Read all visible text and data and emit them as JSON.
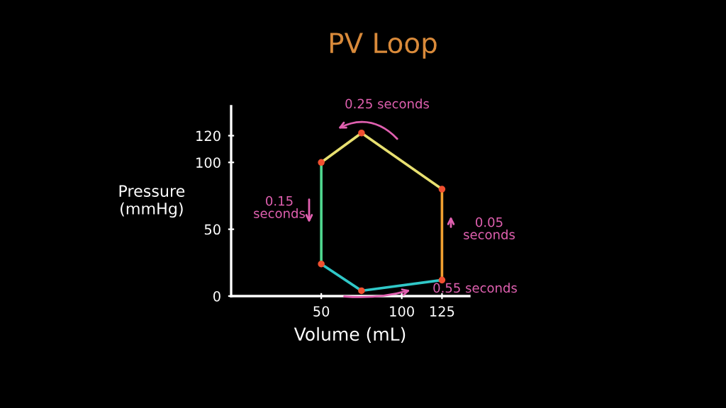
{
  "chart_data": {
    "type": "line",
    "title": "PV Loop",
    "xlabel": "Volume (mL)",
    "ylabel": "Pressure\n(mmHg)",
    "xlim": [
      -6,
      142
    ],
    "ylim": [
      0,
      142
    ],
    "xticks": [
      50,
      100,
      125
    ],
    "yticks": [
      0,
      50,
      100,
      120
    ],
    "grid": false,
    "marker": "none",
    "line_style": "solid",
    "series": [
      {
        "color": "#e8e070",
        "x": [
          125,
          75,
          50
        ],
        "values": [
          80,
          122,
          100
        ]
      },
      {
        "color": "#50d890",
        "x": [
          50,
          50
        ],
        "values": [
          100,
          24
        ]
      },
      {
        "color": "#30c8c8",
        "x": [
          50,
          75,
          125
        ],
        "values": [
          24,
          4,
          12
        ]
      },
      {
        "color": "#f0a030",
        "x": [
          125,
          125
        ],
        "values": [
          12,
          80
        ]
      },
      {
        "type": "scatter",
        "color": "#f05030",
        "x": [
          125,
          75,
          50,
          50,
          75,
          125
        ],
        "values": [
          80,
          122,
          100,
          24,
          4,
          12
        ]
      }
    ],
    "annotations": [
      "0.25 seconds",
      "0.15\nseconds",
      "0.05\nseconds",
      "0.55 seconds"
    ]
  }
}
